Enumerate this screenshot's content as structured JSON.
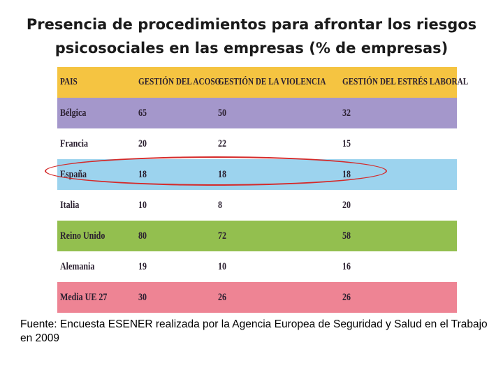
{
  "title": {
    "line1": "Presencia de procedimientos para afrontar los riesgos",
    "line2": "psicosociales en las empresas (% de empresas)"
  },
  "table": {
    "headers": [
      "PAIS",
      "GESTIÓN DEL ACOSO",
      "GESTIÓN DE LA VIOLENCIA",
      "GESTIÓN DEL ESTRÉS LABORAL"
    ],
    "rows": [
      {
        "country": "Bélgica",
        "acoso": "65",
        "violencia": "50",
        "estres": "32"
      },
      {
        "country": "Francia",
        "acoso": "20",
        "violencia": "22",
        "estres": "15"
      },
      {
        "country": "España",
        "acoso": "18",
        "violencia": "18",
        "estres": "18"
      },
      {
        "country": "Italia",
        "acoso": "10",
        "violencia": "8",
        "estres": "20"
      },
      {
        "country": "Reino Unido",
        "acoso": "80",
        "violencia": "72",
        "estres": "58"
      },
      {
        "country": "Alemania",
        "acoso": "19",
        "violencia": "10",
        "estres": "16"
      },
      {
        "country": "Media UE 27",
        "acoso": "30",
        "violencia": "26",
        "estres": "26"
      }
    ]
  },
  "colors": {
    "header": "#f5c441",
    "belgica": "#a497cb",
    "white": "#ffffff",
    "espana": "#9cd3ee",
    "reino_unido": "#93bf4f",
    "media": "#ee8494",
    "highlight": "#d42a2a"
  },
  "source": "Fuente: Encuesta ESENER realizada por la Agencia Europea de Seguridad y Salud en el Trabajo en 2009"
}
